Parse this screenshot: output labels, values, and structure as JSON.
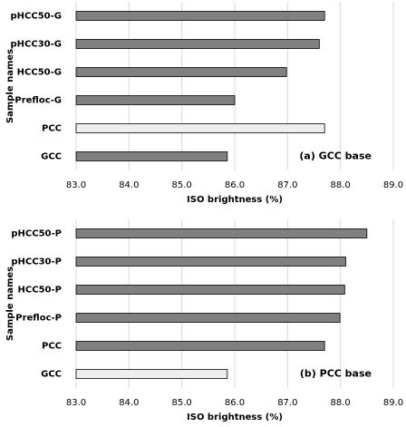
{
  "chart_data": [
    {
      "type": "bar",
      "orientation": "horizontal",
      "categories": [
        "pHCC50-G",
        "pHCC30-G",
        "HCC50-G",
        "Prefloc-G",
        "PCC",
        "GCC"
      ],
      "values": [
        87.7,
        87.6,
        86.98,
        86.0,
        87.7,
        85.86
      ],
      "colors": [
        "#808080",
        "#808080",
        "#808080",
        "#808080",
        "#eeeeee",
        "#808080"
      ],
      "xlabel": "ISO brightness (%)",
      "ylabel": "Sample names",
      "annotation": "(a) GCC base",
      "xlim": [
        83,
        89
      ],
      "xticks": [
        {
          "value": 83,
          "label": "83.0"
        },
        {
          "value": 84,
          "label": "84.0"
        },
        {
          "value": 85,
          "label": "85.0"
        },
        {
          "value": 86,
          "label": "86.0"
        },
        {
          "value": 87,
          "label": "87.0"
        },
        {
          "value": 88,
          "label": "88.0"
        },
        {
          "value": 89,
          "label": "89.0"
        }
      ],
      "grid": true
    },
    {
      "type": "bar",
      "orientation": "horizontal",
      "categories": [
        "pHCC50-P",
        "pHCC30-P",
        "HCC50-P",
        "Prefloc-P",
        "PCC",
        "GCC"
      ],
      "values": [
        88.5,
        88.1,
        88.08,
        87.99,
        87.7,
        85.86
      ],
      "colors": [
        "#808080",
        "#808080",
        "#808080",
        "#808080",
        "#808080",
        "#eeeeee"
      ],
      "xlabel": "ISO brightness (%)",
      "ylabel": "Sample names",
      "annotation": "(b) PCC base",
      "xlim": [
        83,
        89
      ],
      "xticks": [
        {
          "value": 83,
          "label": "83.0"
        },
        {
          "value": 84,
          "label": "84.0"
        },
        {
          "value": 85,
          "label": "85.0"
        },
        {
          "value": 86,
          "label": "86.0"
        },
        {
          "value": 87,
          "label": "87.0"
        },
        {
          "value": 88,
          "label": "88.0"
        },
        {
          "value": 89,
          "label": "89.0"
        }
      ],
      "grid": true
    }
  ]
}
